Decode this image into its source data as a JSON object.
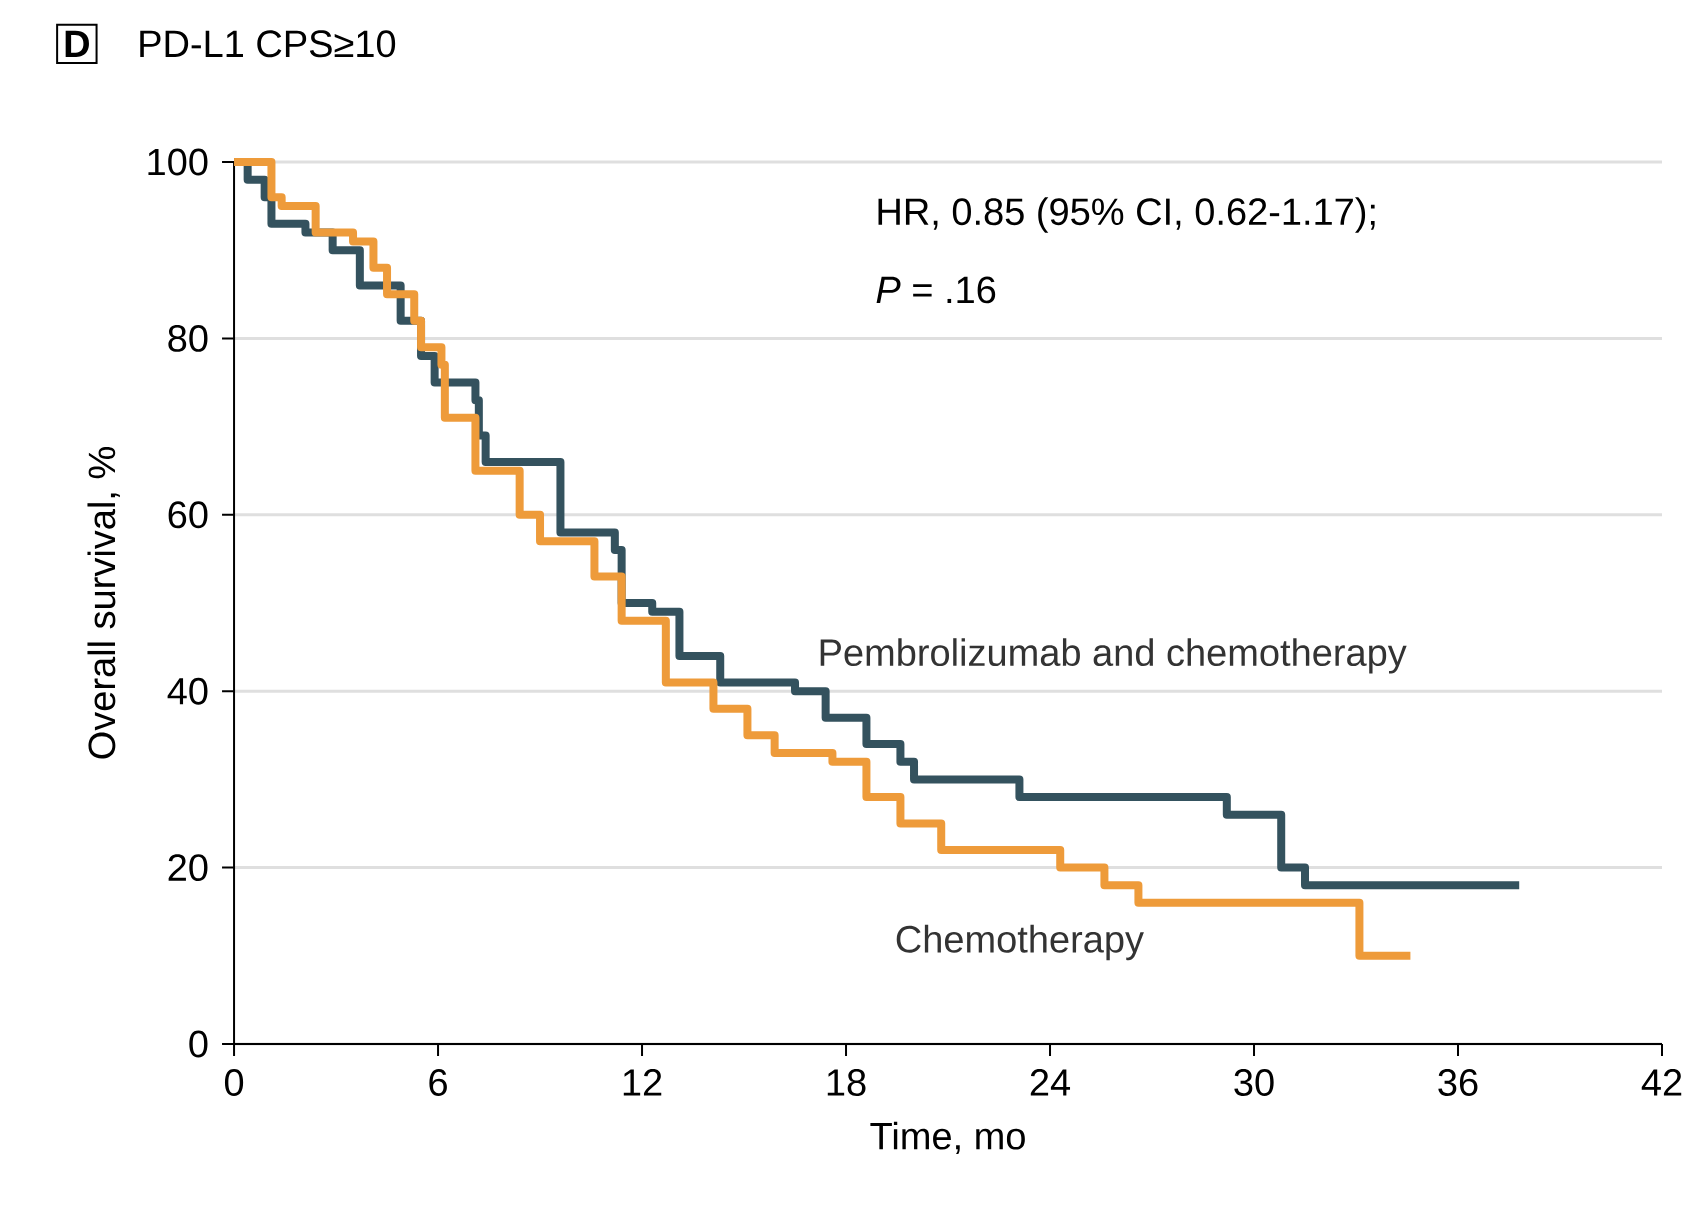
{
  "chart_data": {
    "type": "step",
    "title": "PD-L1 CPS≥10",
    "xlabel": "Time, mo",
    "ylabel": "Overall survival, %",
    "annotations": [
      "D",
      "HR, 0.85 (95% CI, 0.62-1.17);",
      "*P* = .16"
    ],
    "series": [
      {
        "name": "Pembrolizumab and chemotherapy",
        "color": "#34525e",
        "x": [
          0,
          0.4,
          0.9,
          1.1,
          2.1,
          2.9,
          3.7,
          4.9,
          5.5,
          5.9,
          7.1,
          7.2,
          7.4,
          9.6,
          11.2,
          11.4,
          12.3,
          13.1,
          14.3,
          16.5,
          17.4,
          18.6,
          19.6,
          20,
          23.1,
          29.2,
          30.8,
          31.5,
          37.8
        ],
        "values": [
          100,
          98,
          96,
          93,
          92,
          90,
          86,
          82,
          78,
          75,
          73,
          69,
          66,
          58,
          56,
          50,
          49,
          44,
          41,
          40,
          37,
          34,
          32,
          30,
          28,
          26,
          20,
          18,
          18
        ]
      },
      {
        "name": "Chemotherapy",
        "color": "#ee9b3a",
        "x": [
          0,
          1.1,
          1.4,
          2.4,
          3.5,
          4.1,
          4.5,
          5.3,
          5.5,
          6.1,
          6.2,
          7.1,
          8.4,
          9,
          10.6,
          11.4,
          12.7,
          14.1,
          15.1,
          15.9,
          17.6,
          18.6,
          19.6,
          20.8,
          24.3,
          25.6,
          26.6,
          33.1,
          34.6
        ],
        "values": [
          100,
          96,
          95,
          92,
          91,
          88,
          85,
          82,
          79,
          77,
          71,
          65,
          60,
          57,
          53,
          48,
          41,
          38,
          35,
          33,
          32,
          28,
          25,
          22,
          20,
          18,
          16,
          10,
          10
        ]
      }
    ],
    "xlim": [
      0,
      42
    ],
    "xticks": [
      0,
      6,
      12,
      18,
      24,
      30,
      36,
      42
    ],
    "ylim": [
      0,
      100
    ],
    "yticks": [
      0,
      20,
      40,
      60,
      80,
      100
    ],
    "grid": "y",
    "legend": false
  }
}
